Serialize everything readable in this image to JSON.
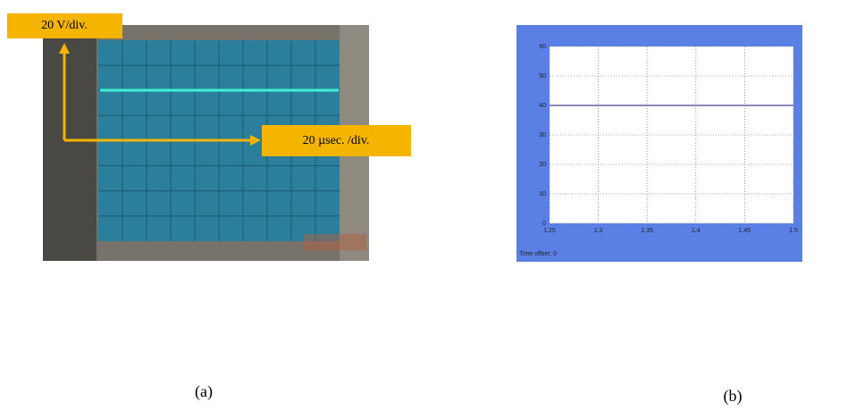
{
  "photo": {
    "volt_label": "20 V/div.",
    "time_label": "20 µsec. /div.",
    "caption": "(a)"
  },
  "chart_data": {
    "type": "line",
    "x": [
      1.25,
      1.5
    ],
    "series": [
      {
        "values": [
          40,
          40
        ],
        "color": "#6a5fa8"
      }
    ],
    "xlim": [
      1.25,
      1.5
    ],
    "ylim": [
      0,
      60
    ],
    "xticks": [
      1.25,
      1.3,
      1.35,
      1.4,
      1.45,
      1.5
    ],
    "yticks": [
      0,
      10,
      20,
      30,
      40,
      50,
      60
    ],
    "grid": true,
    "footer": "Time offset: 0",
    "caption": "(b)"
  }
}
